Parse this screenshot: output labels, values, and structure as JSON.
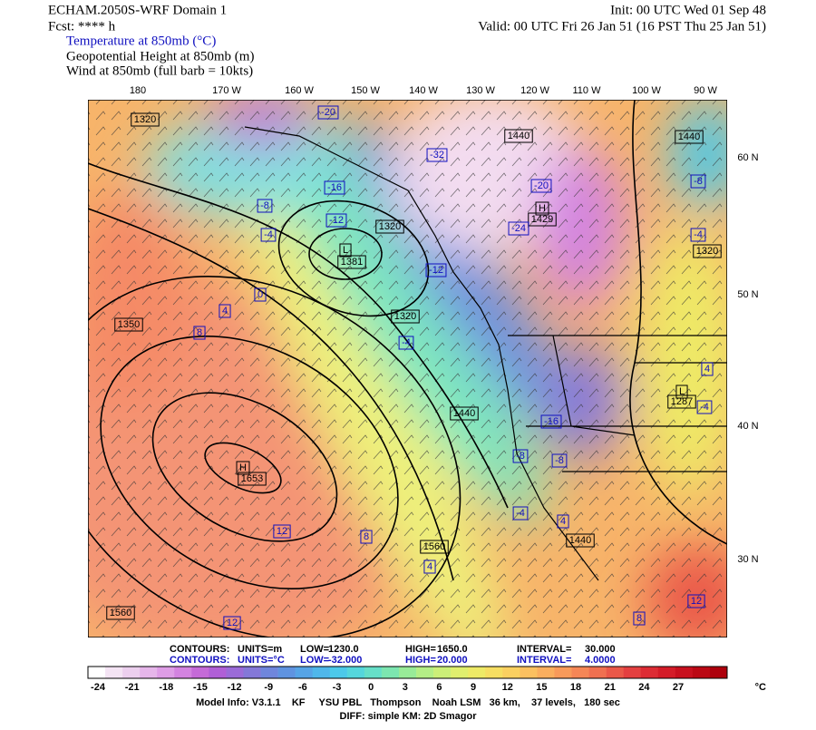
{
  "header": {
    "title": "ECHAM.2050S-WRF Domain 1",
    "forecast": "Fcst: **** h",
    "init": "Init: 00 UTC Wed 01 Sep 48",
    "valid": "Valid: 00 UTC Fri 26 Jan 51 (16 PST Thu 25 Jan 51)",
    "fields": [
      "Temperature at 850mb (°C)",
      "Geopotential Height at 850mb (m)",
      "Wind at 850mb (full barb = 10kts)"
    ]
  },
  "map": {
    "longitude_labels": [
      "180",
      "170 W",
      "160 W",
      "150 W",
      "140 W",
      "130 W",
      "120 W",
      "110 W",
      "100 W",
      "90 W"
    ],
    "latitude_labels": [
      "60 N",
      "50 N",
      "40 N",
      "30 N"
    ],
    "height_labels": [
      1320,
      1440,
      1320,
      "H",
      1429,
      "L",
      1381,
      1350,
      1320,
      1440,
      1320,
      "L",
      1287,
      1440,
      "H",
      1653,
      1440,
      1560,
      1560
    ],
    "temperature_labels": [
      -20,
      -32,
      -16,
      -20,
      -8,
      -12,
      -24,
      -4,
      -12,
      0,
      4,
      8,
      -4,
      -8,
      -4,
      4,
      -4,
      -16,
      -8,
      -8,
      -4,
      4,
      12,
      8,
      4,
      12,
      12,
      8
    ]
  },
  "contour_info": [
    [
      "CONTOURS:",
      "UNITS=m",
      "LOW=",
      "1230.0",
      "HIGH=",
      "1650.0",
      "INTERVAL=",
      "30.000"
    ],
    [
      "CONTOURS:",
      "UNITS=°C",
      "LOW=",
      "-32.000",
      "HIGH=",
      "20.000",
      "INTERVAL=",
      "4.0000"
    ]
  ],
  "colorbar": {
    "labels": [
      -24,
      -21,
      -18,
      -15,
      -12,
      -9,
      -6,
      -3,
      0,
      3,
      6,
      9,
      12,
      15,
      18,
      21,
      24,
      27
    ],
    "unit": "°C",
    "colors": [
      "#ffffff",
      "#f4e4f4",
      "#eccfee",
      "#e6b6ea",
      "#de9de6",
      "#d383e0",
      "#c56ad8",
      "#b05fd6",
      "#9b6bd8",
      "#8478d8",
      "#6f86dc",
      "#5f93e0",
      "#56a4e6",
      "#4fb7ea",
      "#4cc9ea",
      "#55d6dc",
      "#66dfc8",
      "#7ce6b0",
      "#98eb98",
      "#b4ee86",
      "#ccef78",
      "#e0ef6e",
      "#eeea66",
      "#f6de62",
      "#fad060",
      "#fbc060",
      "#faae5e",
      "#f89a5a",
      "#f58656",
      "#f07050",
      "#ea5848",
      "#e44040",
      "#dd2c34",
      "#d41c28",
      "#c8101e",
      "#bb0814",
      "#ad000c"
    ]
  },
  "footer": [
    "Model Info: V3.1.1    KF     YSU PBL   Thompson    Noah LSM   36 km,    37 levels,   180 sec",
    "DIFF: simple KM: 2D Smagor"
  ]
}
